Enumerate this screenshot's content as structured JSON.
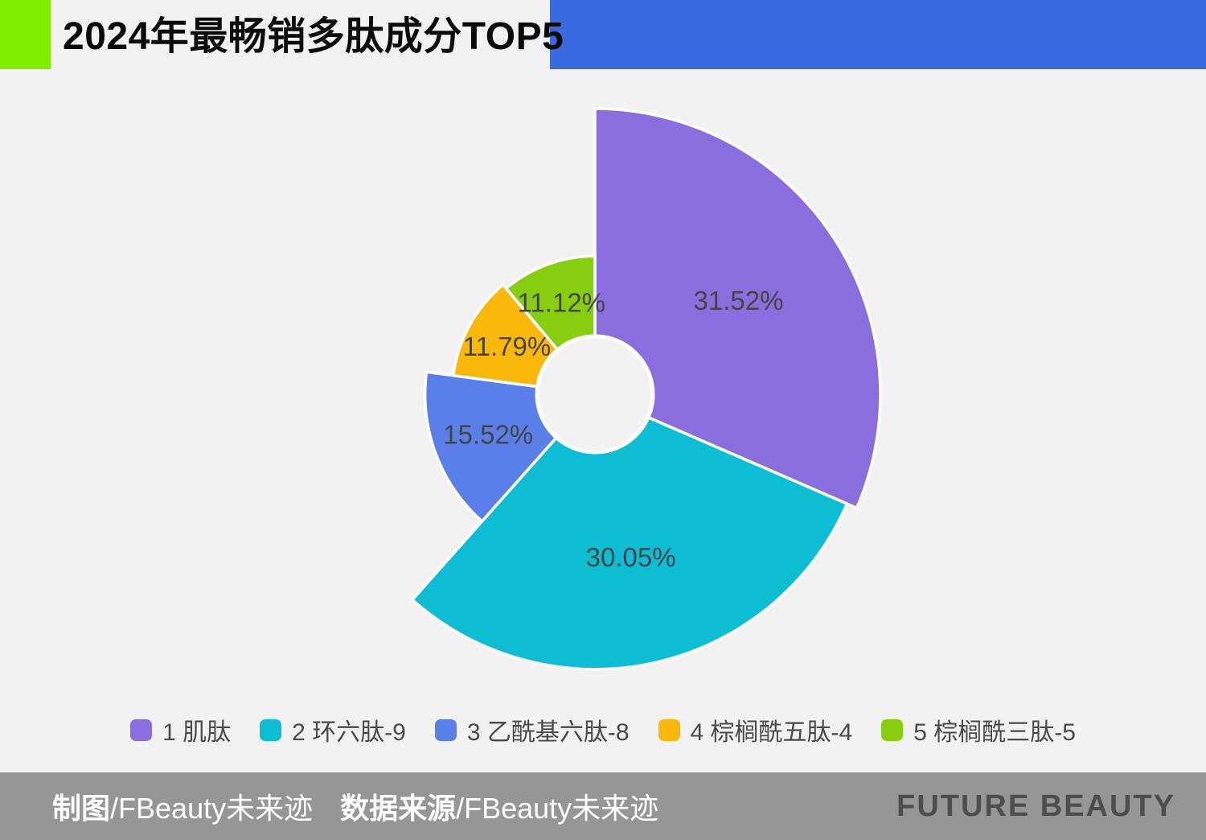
{
  "header": {
    "title": "2024年最畅销多肽成分TOP5",
    "accent_green": "#7FEE00",
    "accent_blue": "#3A6AE0"
  },
  "chart_data": {
    "type": "pie",
    "variant": "nightingale_rose_donut",
    "title": "2024年最畅销多肽成分TOP5",
    "direction": "clockwise",
    "start_angle": "top (12 o'clock)",
    "legend_position": "bottom",
    "label_format": "percent inside slice",
    "background": "#F2F2F3",
    "slice_border_color": "#FFFFFF",
    "series": [
      {
        "rank": "1",
        "name": "肌肽",
        "value": 31.52,
        "label": "31.52%",
        "color": "#8B6EDD"
      },
      {
        "rank": "2",
        "name": "环六肽-9",
        "value": 30.05,
        "label": "30.05%",
        "color": "#0CBDD3"
      },
      {
        "rank": "3",
        "name": "乙酰基六肽-8",
        "value": 15.52,
        "label": "15.52%",
        "color": "#5A7FE8"
      },
      {
        "rank": "4",
        "name": "棕榈酰五肽-4",
        "value": 11.79,
        "label": "11.79%",
        "color": "#FAB80A"
      },
      {
        "rank": "5",
        "name": "棕榈酰三肽-5",
        "value": 11.12,
        "label": "11.12%",
        "color": "#87CE10"
      }
    ]
  },
  "footer": {
    "credit_label": "制图",
    "credit_value": "/FBeauty未来迹",
    "source_label": "数据来源",
    "source_value": "/FBeauty未来迹",
    "brand": "FUTURE BEAUTY",
    "bar_color": "#969696"
  }
}
